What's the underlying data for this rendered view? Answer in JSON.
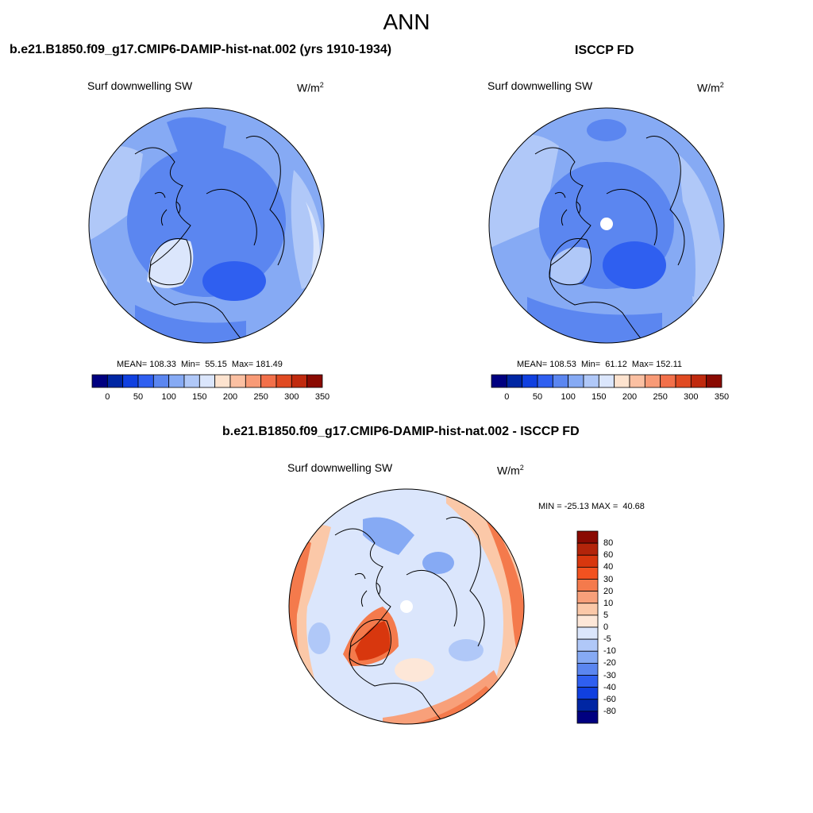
{
  "figure": {
    "title": "ANN"
  },
  "panels": [
    {
      "title": "b.e21.B1850.f09_g17.CMIP6-DAMIP-hist-nat.002 (yrs 1910-1934)",
      "subtitle": "Surf downwelling SW",
      "units_base": "W/m",
      "units_sup": "2",
      "stats": "MEAN= 108.33  Min=  55.15  Max= 181.49",
      "colorbar_labels": [
        "0",
        "50",
        "100",
        "150",
        "200",
        "250",
        "300",
        "350"
      ]
    },
    {
      "title": "ISCCP FD",
      "subtitle": "Surf downwelling SW",
      "units_base": "W/m",
      "units_sup": "2",
      "stats": "MEAN= 108.53  Min=  61.12  Max= 152.11",
      "colorbar_labels": [
        "0",
        "50",
        "100",
        "150",
        "200",
        "250",
        "300",
        "350"
      ]
    },
    {
      "title": "b.e21.B1850.f09_g17.CMIP6-DAMIP-hist-nat.002 - ISCCP FD",
      "subtitle": "Surf downwelling SW",
      "units_base": "W/m",
      "units_sup": "2",
      "stats": "MIN = -25.13 MAX =  40.68",
      "colorbar_labels": [
        "80",
        "60",
        "40",
        "30",
        "20",
        "10",
        "5",
        "0",
        "-5",
        "-10",
        "-20",
        "-30",
        "-40",
        "-60",
        "-80"
      ]
    }
  ],
  "colors": {
    "abs_scale": [
      "#000080",
      "#0026a3",
      "#1040e0",
      "#2f5ff0",
      "#5b86f0",
      "#86aaf4",
      "#b0c8f8",
      "#dbe6fc",
      "#fde3cf",
      "#fbc0a2",
      "#f89a76",
      "#f2704a",
      "#e04a22",
      "#c02a0e",
      "#8a0a02"
    ],
    "diff_scale": [
      "#8a0a02",
      "#b3240a",
      "#d8370e",
      "#f25220",
      "#f47a4c",
      "#f8a07a",
      "#fbc8a8",
      "#fde7d8",
      "#dbe6fc",
      "#b0c8f8",
      "#86aaf4",
      "#5b86f0",
      "#2f5ff0",
      "#1040e0",
      "#0026a3",
      "#000080"
    ]
  }
}
